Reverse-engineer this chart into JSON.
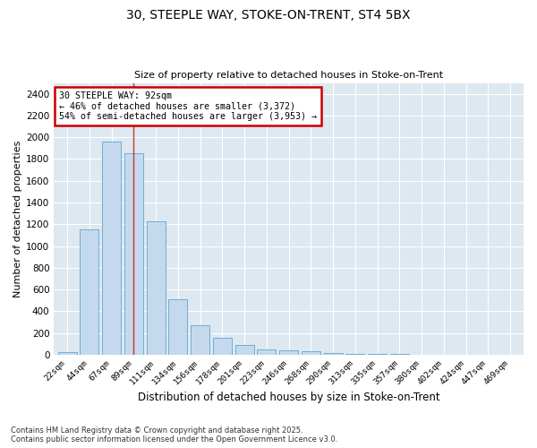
{
  "title1": "30, STEEPLE WAY, STOKE-ON-TRENT, ST4 5BX",
  "title2": "Size of property relative to detached houses in Stoke-on-Trent",
  "xlabel": "Distribution of detached houses by size in Stoke-on-Trent",
  "ylabel": "Number of detached properties",
  "categories": [
    "22sqm",
    "44sqm",
    "67sqm",
    "89sqm",
    "111sqm",
    "134sqm",
    "156sqm",
    "178sqm",
    "201sqm",
    "223sqm",
    "246sqm",
    "268sqm",
    "290sqm",
    "313sqm",
    "335sqm",
    "357sqm",
    "380sqm",
    "402sqm",
    "424sqm",
    "447sqm",
    "469sqm"
  ],
  "values": [
    25,
    1150,
    1960,
    1850,
    1230,
    510,
    270,
    155,
    90,
    50,
    40,
    30,
    15,
    8,
    5,
    3,
    2,
    2,
    2,
    1,
    1
  ],
  "bar_color": "#c5d9ee",
  "bar_edge_color": "#6baed6",
  "annotation_title": "30 STEEPLE WAY: 92sqm",
  "annotation_line1": "← 46% of detached houses are smaller (3,372)",
  "annotation_line2": "54% of semi-detached houses are larger (3,953) →",
  "annotation_box_color": "#ffffff",
  "annotation_box_edge_color": "#cc0000",
  "vline_color": "#cc3333",
  "ylim": [
    0,
    2500
  ],
  "yticks": [
    0,
    200,
    400,
    600,
    800,
    1000,
    1200,
    1400,
    1600,
    1800,
    2000,
    2200,
    2400
  ],
  "bg_color": "#dde8f0",
  "grid_color": "#ffffff",
  "footer_line1": "Contains HM Land Registry data © Crown copyright and database right 2025.",
  "footer_line2": "Contains public sector information licensed under the Open Government Licence v3.0.",
  "fig_width": 6.0,
  "fig_height": 5.0,
  "dpi": 100
}
